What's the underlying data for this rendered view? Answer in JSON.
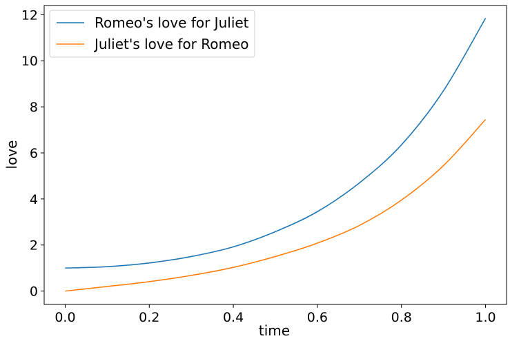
{
  "chart_data": {
    "type": "line",
    "title": "",
    "xlabel": "time",
    "ylabel": "love",
    "xlim": [
      -0.05,
      1.05
    ],
    "ylim": [
      -0.58,
      12.4
    ],
    "xticks": [
      0.0,
      0.2,
      0.4,
      0.6,
      0.8,
      1.0
    ],
    "xtick_labels": [
      "0.0",
      "0.2",
      "0.4",
      "0.6",
      "0.8",
      "1.0"
    ],
    "yticks": [
      0,
      2,
      4,
      6,
      8,
      10,
      12
    ],
    "ytick_labels": [
      "0",
      "2",
      "4",
      "6",
      "8",
      "10",
      "12"
    ],
    "grid": false,
    "legend_position": "top-left",
    "series": [
      {
        "name": "Romeo's love for Juliet",
        "color": "#1f77b4",
        "x": [
          0.0,
          0.1,
          0.2,
          0.3,
          0.4,
          0.5,
          0.6,
          0.7,
          0.8,
          0.9,
          1.0
        ],
        "y": [
          1.0,
          1.06,
          1.22,
          1.5,
          1.92,
          2.58,
          3.45,
          4.7,
          6.35,
          8.7,
          11.85
        ]
      },
      {
        "name": "Juliet's love for Romeo",
        "color": "#ff7f0e",
        "x": [
          0.0,
          0.1,
          0.2,
          0.3,
          0.4,
          0.5,
          0.6,
          0.7,
          0.8,
          0.9,
          1.0
        ],
        "y": [
          0.0,
          0.2,
          0.41,
          0.68,
          1.03,
          1.5,
          2.08,
          2.85,
          3.95,
          5.45,
          7.45
        ]
      }
    ]
  }
}
